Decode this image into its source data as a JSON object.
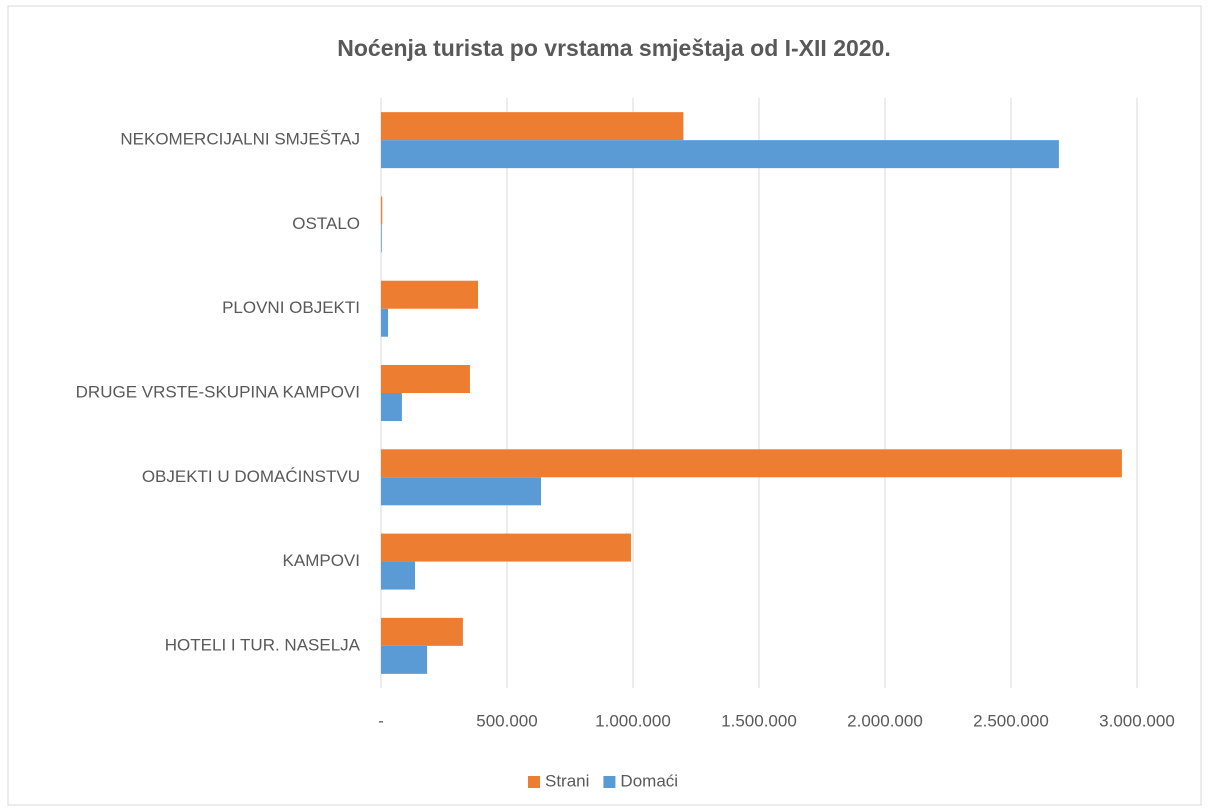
{
  "chart_data": {
    "type": "hbar",
    "title": "Noćenja turista po vrstama smještaja od I-XII 2020.",
    "categories": [
      "NEKOMERCIJALNI SMJEŠTAJ",
      "OSTALO",
      "PLOVNI OBJEKTI",
      "DRUGE VRSTE-SKUPINA KAMPOVI",
      "OBJEKTI U DOMAĆINSTVU",
      "KAMPOVI",
      "HOTELI I TUR. NASELJA"
    ],
    "series": [
      {
        "name": "Strani",
        "color": "#ed7d31",
        "values": [
          1200000,
          5000,
          385000,
          353000,
          2940000,
          992000,
          325000
        ]
      },
      {
        "name": "Domaći",
        "color": "#5b9bd5",
        "values": [
          2690000,
          3000,
          28000,
          83000,
          635000,
          135000,
          183000
        ]
      }
    ],
    "xlim": [
      0,
      3000000
    ],
    "xticks": [
      {
        "value": 0,
        "label": "-"
      },
      {
        "value": 500000,
        "label": "500.000"
      },
      {
        "value": 1000000,
        "label": "1.000.000"
      },
      {
        "value": 1500000,
        "label": "1.500.000"
      },
      {
        "value": 2000000,
        "label": "2.000.000"
      },
      {
        "value": 2500000,
        "label": "2.500.000"
      },
      {
        "value": 3000000,
        "label": "3.000.000"
      }
    ],
    "grid": true,
    "legend": "bottom"
  }
}
